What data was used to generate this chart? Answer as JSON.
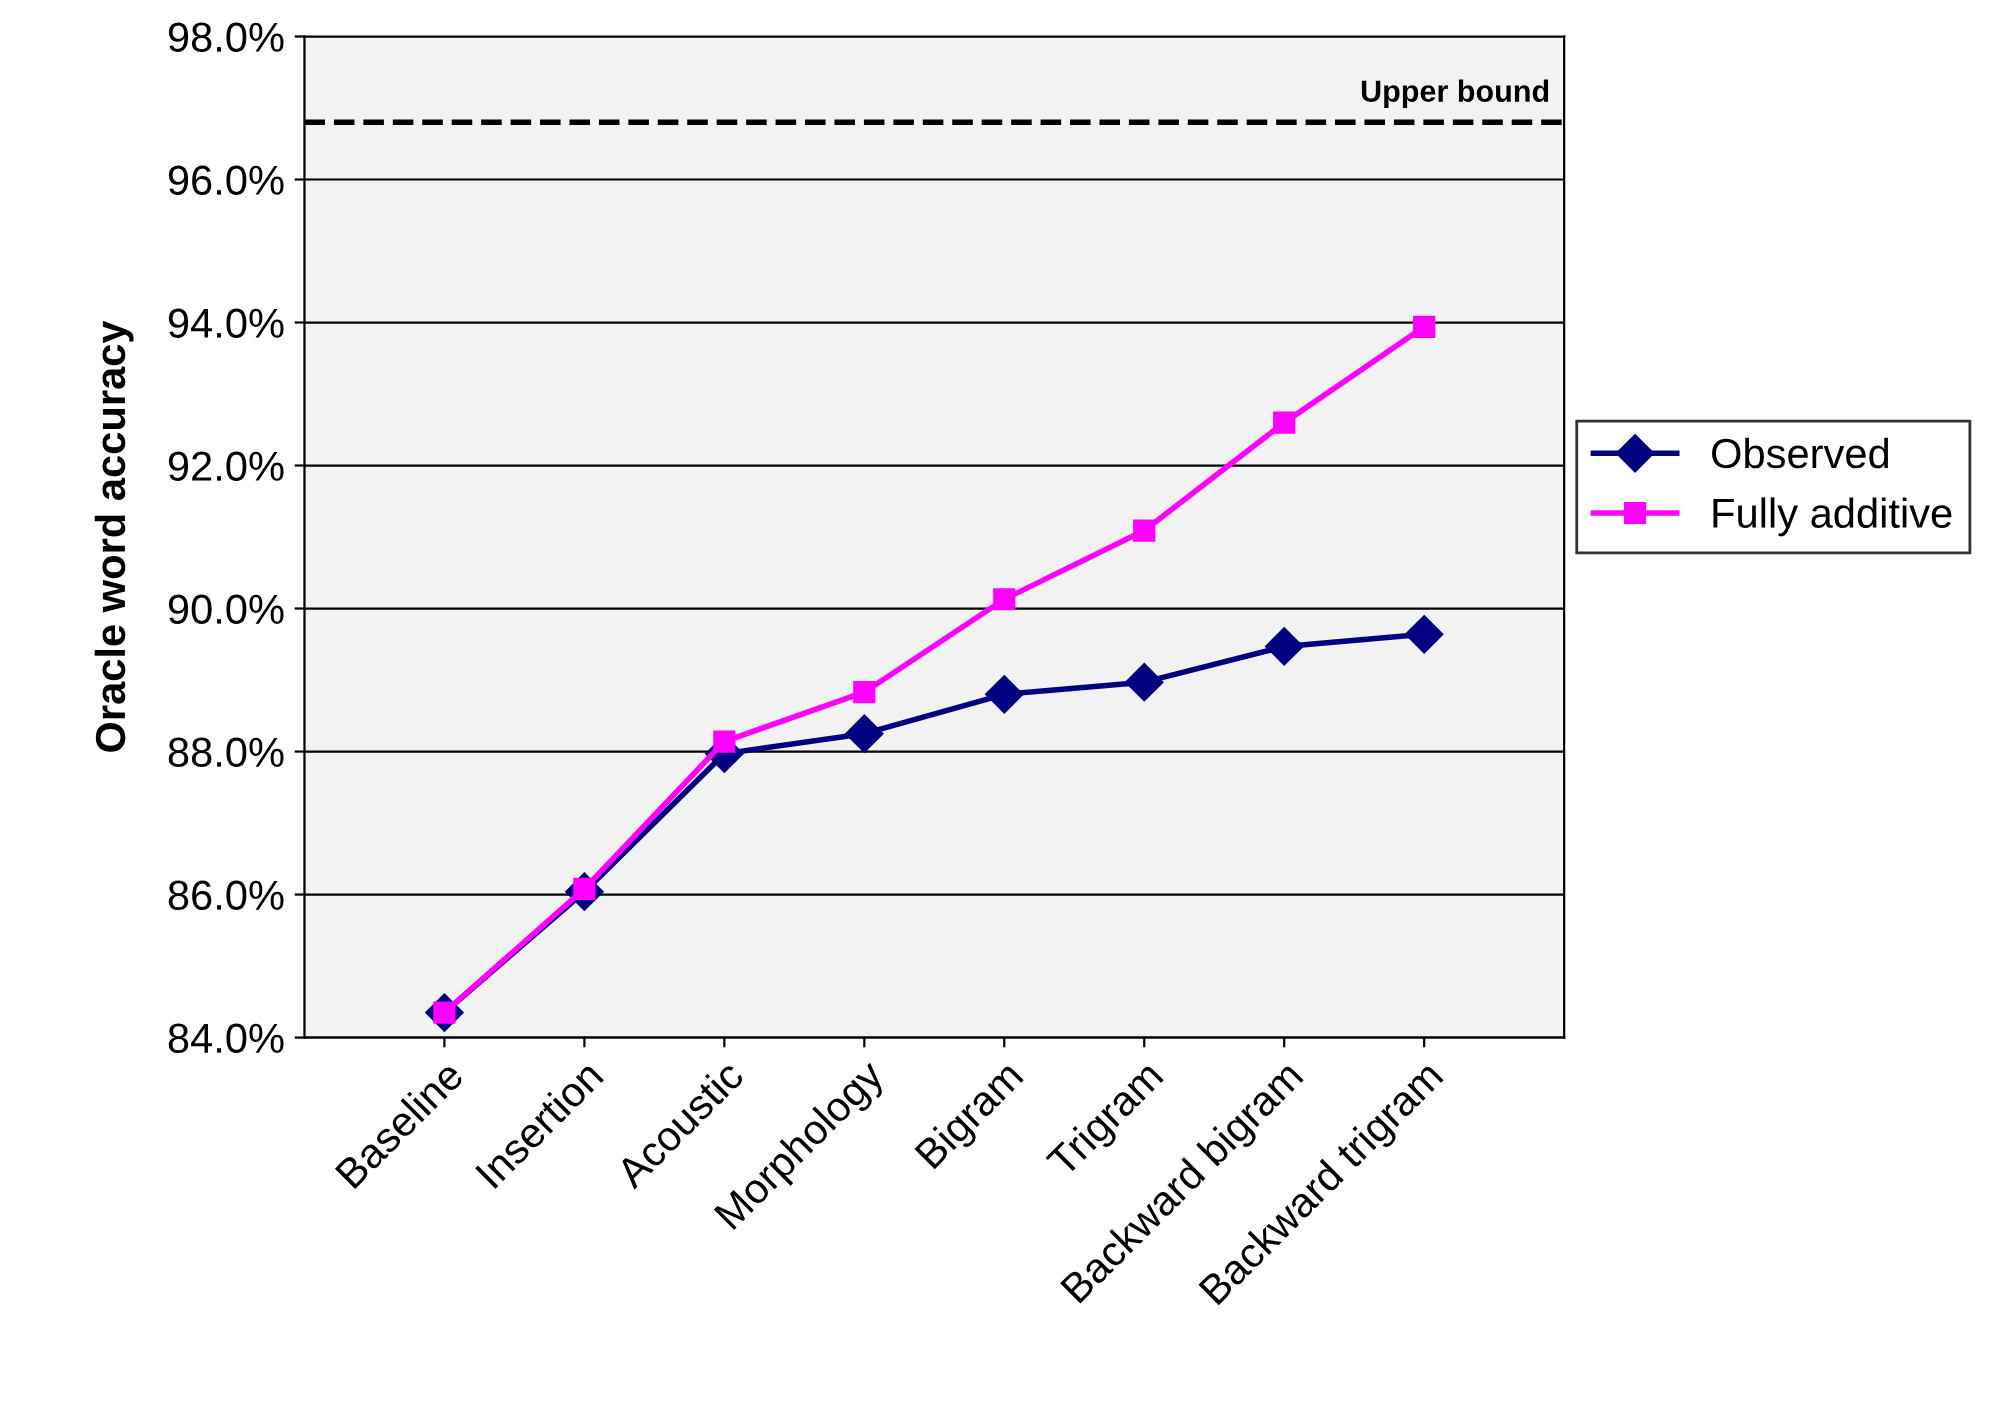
{
  "chart_data": {
    "type": "line",
    "ylabel": "Oracle word accuracy",
    "categories": [
      "Baseline",
      "Insertion",
      "Acoustic",
      "Morphology",
      "Bigram",
      "Trigram",
      "Backward bigram",
      "Backward trigram"
    ],
    "series": [
      {
        "name": "Observed",
        "color": "#000080",
        "marker": "diamond",
        "values": [
          84.35,
          86.04,
          87.97,
          88.25,
          88.8,
          88.97,
          89.47,
          89.64
        ]
      },
      {
        "name": "Fully additive",
        "color": "#ff00ff",
        "marker": "square",
        "values": [
          84.35,
          86.08,
          88.14,
          88.83,
          90.13,
          91.09,
          92.6,
          93.94
        ]
      }
    ],
    "ylim": [
      84,
      98
    ],
    "yticks": [
      {
        "value": 84,
        "label": "84.0%"
      },
      {
        "value": 86,
        "label": "86.0%"
      },
      {
        "value": 88,
        "label": "88.0%"
      },
      {
        "value": 90,
        "label": "90.0%"
      },
      {
        "value": 92,
        "label": "92.0%"
      },
      {
        "value": 94,
        "label": "94.0%"
      },
      {
        "value": 96,
        "label": "96.0%"
      },
      {
        "value": 98,
        "label": "98.0%"
      }
    ],
    "ref_lines": [
      {
        "axis": "y",
        "value": 96.8,
        "label": "Upper bound",
        "color": "#000000",
        "line_style": "dashed"
      }
    ],
    "grid": "y",
    "legend": "right"
  }
}
